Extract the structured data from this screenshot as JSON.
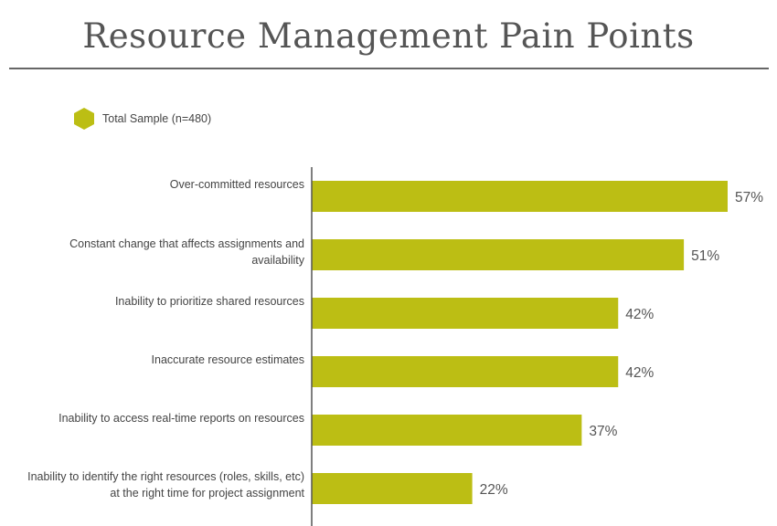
{
  "colors": {
    "bar": "#bcbe14",
    "axis": "#555555",
    "title": "#555555",
    "rule": "#666666"
  },
  "chart_data": {
    "type": "bar",
    "orientation": "horizontal",
    "title": "Resource Management Pain Points",
    "legend": [
      {
        "label": "Total Sample (n=480)",
        "icon": "hexagon-icon",
        "color": "#bcbe14"
      }
    ],
    "legend_position": "top-left",
    "categories": [
      "Over-committed resources",
      "Constant change that affects assignments and availability",
      "Inability to prioritize shared resources",
      "Inaccurate resource estimates",
      "Inability to access real-time reports on resources",
      "Inability to identify the right resources (roles, skills, etc) at the right time for project assignment"
    ],
    "series": [
      {
        "name": "Total Sample (n=480)",
        "values": [
          57,
          51,
          42,
          42,
          37,
          22
        ]
      }
    ],
    "value_labels": [
      "57%",
      "51%",
      "42%",
      "42%",
      "37%",
      "22%"
    ],
    "xlim": [
      0,
      60
    ],
    "grid": false,
    "xlabel": "",
    "ylabel": ""
  }
}
